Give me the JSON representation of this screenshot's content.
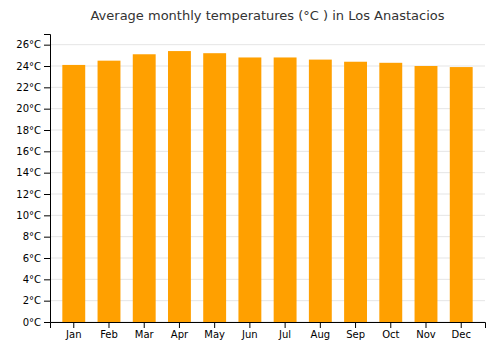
{
  "chart_data": {
    "type": "bar",
    "title": "Average monthly temperatures (°C ) in Los Anastacios",
    "categories": [
      "Jan",
      "Feb",
      "Mar",
      "Apr",
      "May",
      "Jun",
      "Jul",
      "Aug",
      "Sep",
      "Oct",
      "Nov",
      "Dec"
    ],
    "values": [
      24.1,
      24.5,
      25.1,
      25.4,
      25.2,
      24.8,
      24.8,
      24.6,
      24.4,
      24.3,
      24.0,
      23.9
    ],
    "color": "#FFA000",
    "ylim": [
      0,
      27
    ],
    "yticks": [
      {
        "value": 0,
        "label": "0°C"
      },
      {
        "value": 2,
        "label": "2°C"
      },
      {
        "value": 4,
        "label": "4°C"
      },
      {
        "value": 6,
        "label": "6°C"
      },
      {
        "value": 8,
        "label": "8°C"
      },
      {
        "value": 10,
        "label": "10°C"
      },
      {
        "value": 12,
        "label": "12°C"
      },
      {
        "value": 14,
        "label": "14°C"
      },
      {
        "value": 16,
        "label": "16°C"
      },
      {
        "value": 18,
        "label": "18°C"
      },
      {
        "value": 20,
        "label": "20°C"
      },
      {
        "value": 22,
        "label": "22°C"
      },
      {
        "value": 24,
        "label": "24°C"
      },
      {
        "value": 26,
        "label": "26°C"
      }
    ],
    "grid": true
  }
}
